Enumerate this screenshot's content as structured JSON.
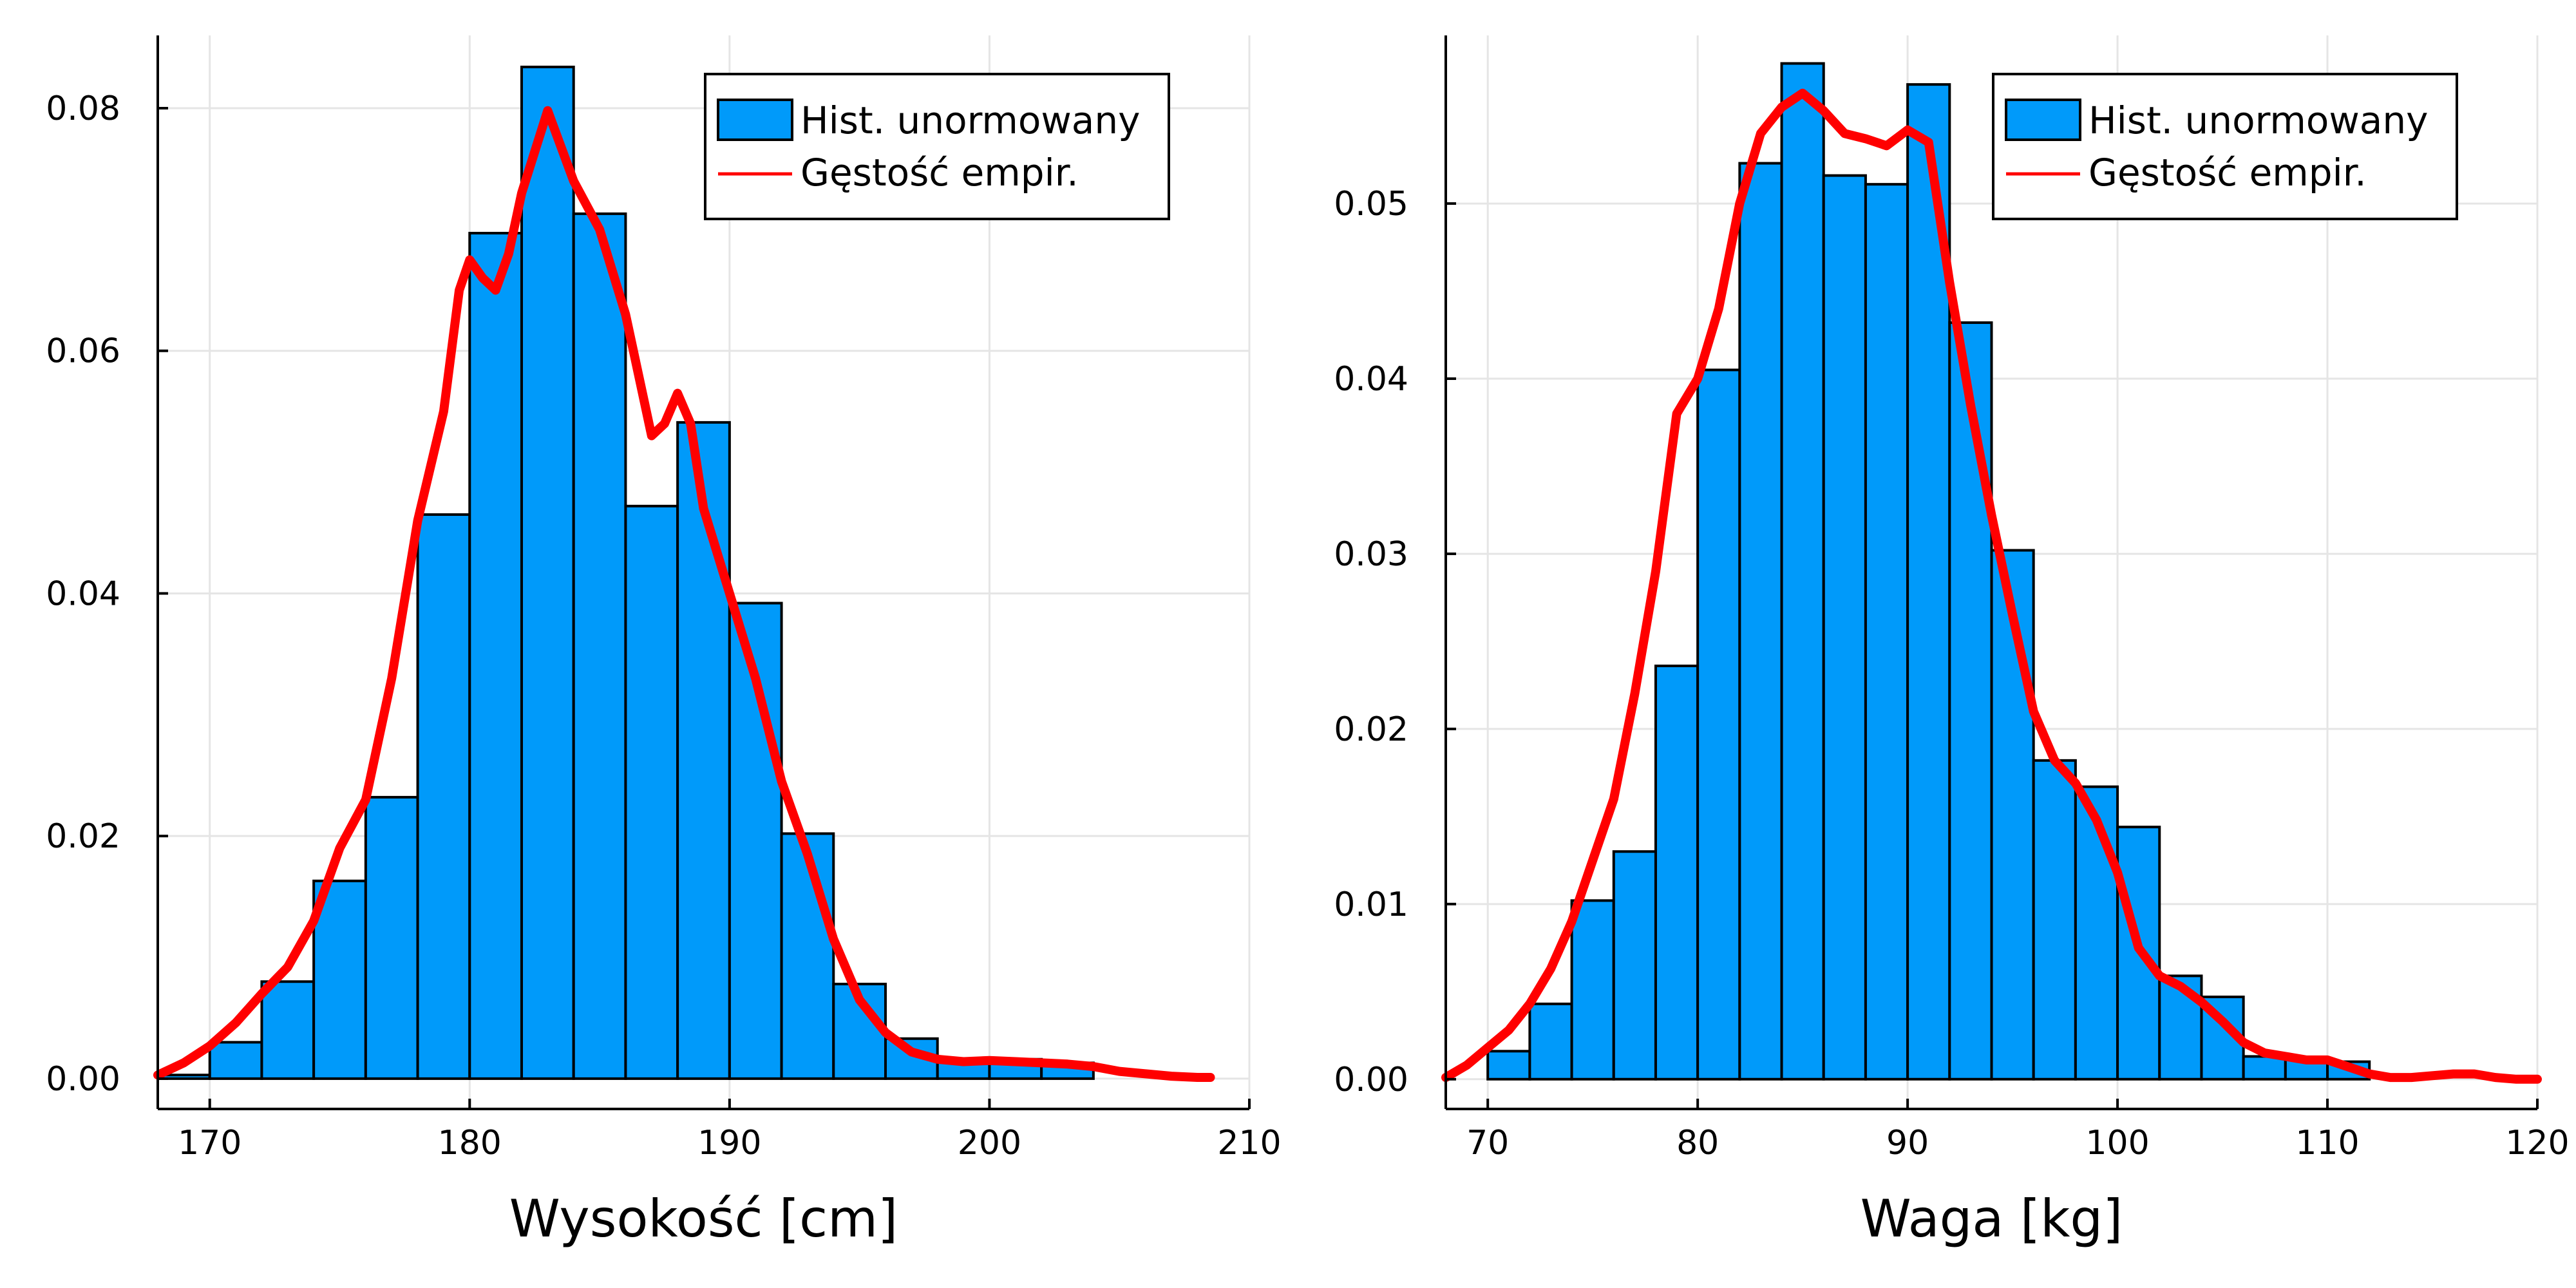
{
  "colors": {
    "bar": "#009AFA",
    "kde": "#FF0000",
    "grid": "#E5E5E5",
    "frame": "#000000"
  },
  "chart_data": [
    {
      "type": "bar",
      "xlabel": "Wysokość [cm]",
      "ylabel": "",
      "xlim": [
        168,
        210
      ],
      "ylim": [
        -0.0025,
        0.086
      ],
      "xticks": [
        170,
        180,
        190,
        200,
        210
      ],
      "xtick_labels": [
        "170",
        "180",
        "190",
        "200",
        "210"
      ],
      "yticks": [
        0,
        0.02,
        0.04,
        0.06,
        0.08
      ],
      "ytick_labels": [
        "0.00",
        "0.02",
        "0.04",
        "0.06",
        "0.08"
      ],
      "grid": true,
      "legend": {
        "placement": "top-right",
        "entries": [
          "Hist. unormowany",
          "Gęstość empir."
        ]
      },
      "series": [
        {
          "name": "Hist. unormowany",
          "kind": "histogram",
          "bin_edges": [
            168,
            170,
            172,
            174,
            176,
            178,
            180,
            182,
            184,
            186,
            188,
            190,
            192,
            194,
            196,
            198,
            200,
            202,
            204
          ],
          "values": [
            0.0003,
            0.003,
            0.008,
            0.0163,
            0.0232,
            0.0465,
            0.0697,
            0.0834,
            0.0713,
            0.0472,
            0.0541,
            0.0392,
            0.0202,
            0.0078,
            0.0033,
            0.0015,
            0.0016,
            0.0013
          ]
        },
        {
          "name": "Gęstość empir.",
          "kind": "line",
          "x": [
            168,
            169,
            170,
            171,
            172,
            173,
            174,
            175,
            176,
            177,
            178,
            179,
            179.6,
            180,
            180.5,
            181,
            181.5,
            182,
            183,
            184,
            185,
            186,
            187,
            187.5,
            188,
            188.5,
            189,
            190,
            191,
            192,
            193,
            194,
            195,
            196,
            197,
            198,
            199,
            200,
            201,
            202,
            203,
            204,
            205,
            206,
            207,
            208,
            208.5
          ],
          "y": [
            0.0003,
            0.0013,
            0.0027,
            0.0046,
            0.007,
            0.0092,
            0.013,
            0.019,
            0.023,
            0.033,
            0.046,
            0.055,
            0.065,
            0.0675,
            0.066,
            0.065,
            0.068,
            0.073,
            0.0798,
            0.074,
            0.07,
            0.063,
            0.053,
            0.054,
            0.0565,
            0.054,
            0.047,
            0.04,
            0.033,
            0.0245,
            0.0185,
            0.0115,
            0.0065,
            0.0038,
            0.0022,
            0.0016,
            0.0014,
            0.0015,
            0.0014,
            0.0013,
            0.0012,
            0.001,
            0.0006,
            0.0004,
            0.0002,
            0.0001,
            0.0001
          ]
        }
      ]
    },
    {
      "type": "bar",
      "xlabel": "Waga [kg]",
      "ylabel": "",
      "xlim": [
        68,
        120
      ],
      "ylim": [
        -0.0017,
        0.0596
      ],
      "xticks": [
        70,
        80,
        90,
        100,
        110,
        120
      ],
      "xtick_labels": [
        "70",
        "80",
        "90",
        "100",
        "110",
        "120"
      ],
      "yticks": [
        0,
        0.01,
        0.02,
        0.03,
        0.04,
        0.05
      ],
      "ytick_labels": [
        "0.00",
        "0.01",
        "0.02",
        "0.03",
        "0.04",
        "0.05"
      ],
      "grid": true,
      "legend": {
        "placement": "top-right",
        "entries": [
          "Hist. unormowany",
          "Gęstość empir."
        ]
      },
      "series": [
        {
          "name": "Hist. unormowany",
          "kind": "histogram",
          "bin_edges": [
            70,
            72,
            74,
            76,
            78,
            80,
            82,
            84,
            86,
            88,
            90,
            92,
            94,
            96,
            98,
            100,
            102,
            104,
            106,
            108,
            110,
            112
          ],
          "values": [
            0.0016,
            0.0043,
            0.0102,
            0.013,
            0.0236,
            0.0405,
            0.0523,
            0.058,
            0.0516,
            0.0511,
            0.0568,
            0.0432,
            0.0302,
            0.0182,
            0.0167,
            0.0144,
            0.0059,
            0.0047,
            0.0013,
            0.0011,
            0.001
          ]
        },
        {
          "name": "Gęstość empir.",
          "kind": "line",
          "x": [
            68,
            69,
            70,
            71,
            72,
            73,
            74,
            75,
            76,
            77,
            78,
            79,
            80,
            81,
            82,
            83,
            84,
            85,
            86,
            87,
            88,
            89,
            90,
            91,
            92,
            93,
            94,
            95,
            96,
            97,
            98,
            99,
            100,
            101,
            102,
            103,
            104,
            105,
            106,
            107,
            108,
            109,
            110,
            111,
            112,
            113,
            114,
            115,
            116,
            117,
            118,
            119,
            120
          ],
          "y": [
            0.0001,
            0.0008,
            0.0018,
            0.0028,
            0.0043,
            0.0063,
            0.009,
            0.0125,
            0.016,
            0.022,
            0.029,
            0.038,
            0.04,
            0.044,
            0.05,
            0.054,
            0.0555,
            0.0563,
            0.0553,
            0.054,
            0.0537,
            0.0533,
            0.0542,
            0.0535,
            0.0455,
            0.0385,
            0.0322,
            0.0265,
            0.021,
            0.0182,
            0.0169,
            0.0148,
            0.0118,
            0.0075,
            0.0059,
            0.0053,
            0.0044,
            0.0033,
            0.0021,
            0.0015,
            0.0013,
            0.0011,
            0.0011,
            0.0007,
            0.0003,
            0.0001,
            0.0001,
            0.0002,
            0.0003,
            0.0003,
            0.0001,
            0.0,
            0.0
          ]
        }
      ]
    }
  ]
}
